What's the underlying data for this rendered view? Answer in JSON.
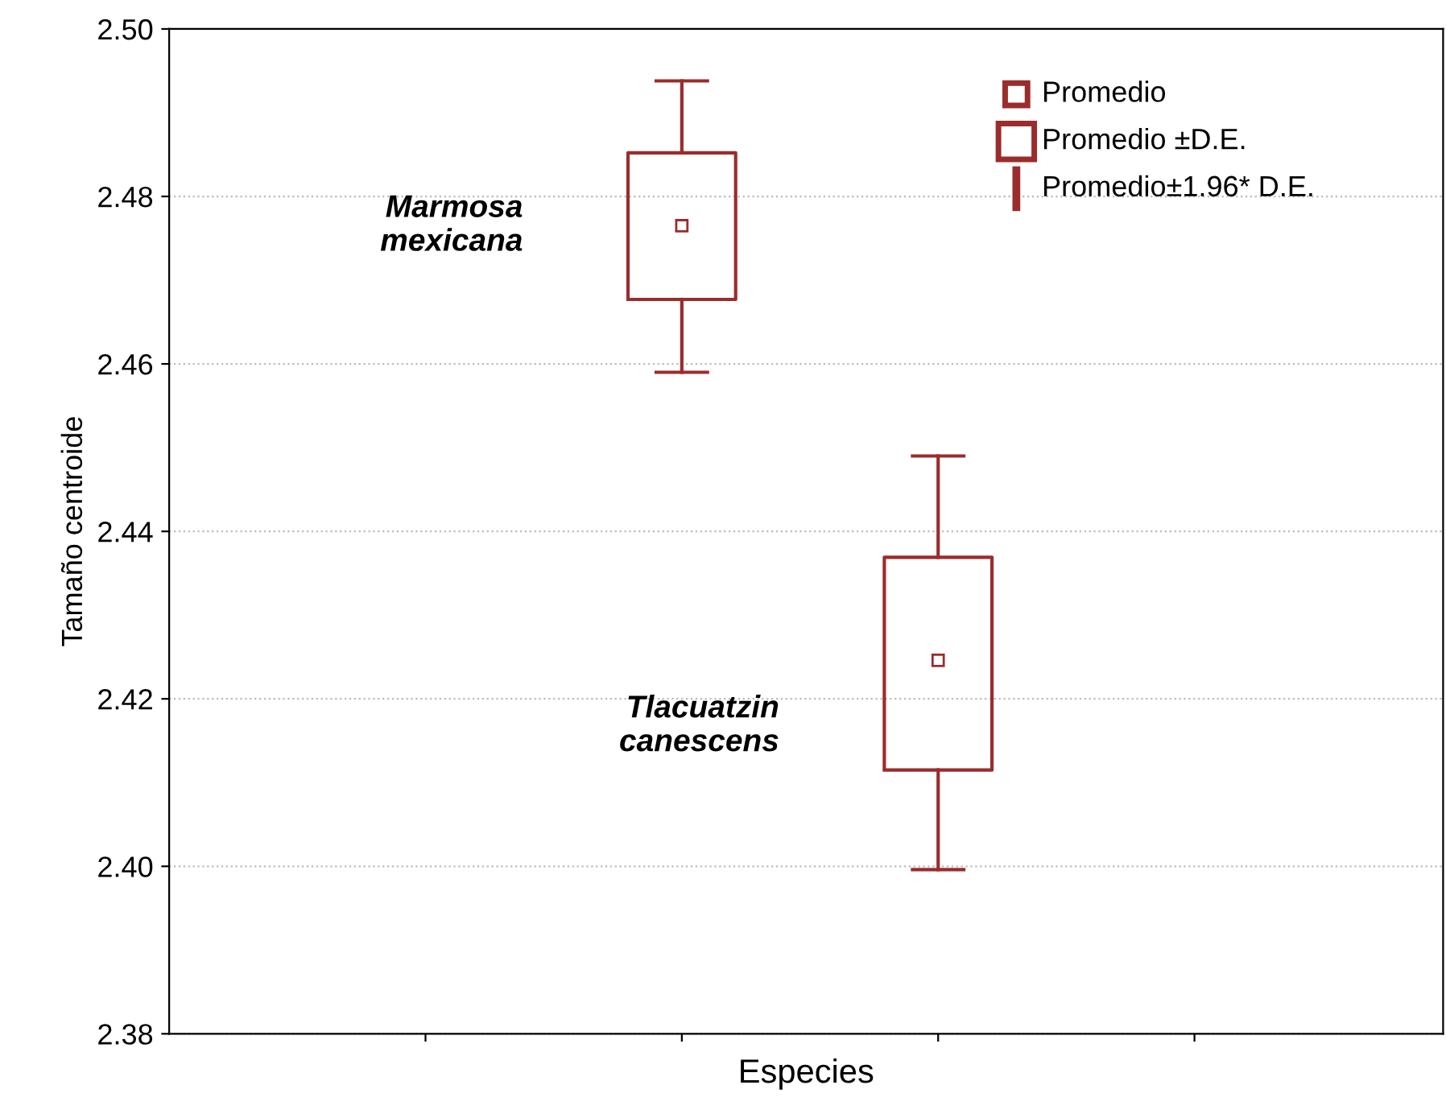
{
  "chart_data": {
    "type": "box",
    "xlabel": "Especies",
    "ylabel": "Tamaño centroide",
    "categories": [
      null,
      null
    ],
    "boxes": [
      {
        "low": 2.459,
        "q1": 2.4677,
        "mean": 2.4765,
        "q3": 2.4852,
        "high": 2.4938
      },
      {
        "low": 2.3996,
        "q1": 2.4115,
        "mean": 2.4246,
        "q3": 2.4369,
        "high": 2.449
      }
    ],
    "color": "#9b2c2c",
    "ylim": [
      2.38,
      2.5
    ],
    "yticks": [
      2.38,
      {
        "value": 2.4,
        "label": "2.40"
      },
      2.42,
      2.44,
      2.46,
      2.48,
      {
        "value": 2.5,
        "label": "2.50"
      }
    ],
    "grid": "y",
    "annotations": [
      "Marmosa\nmexicana",
      "Tlacuatzin\ncanescens",
      "Promedio",
      "Promedio ±D.E.",
      "Promedio±1.96* D.E."
    ]
  }
}
